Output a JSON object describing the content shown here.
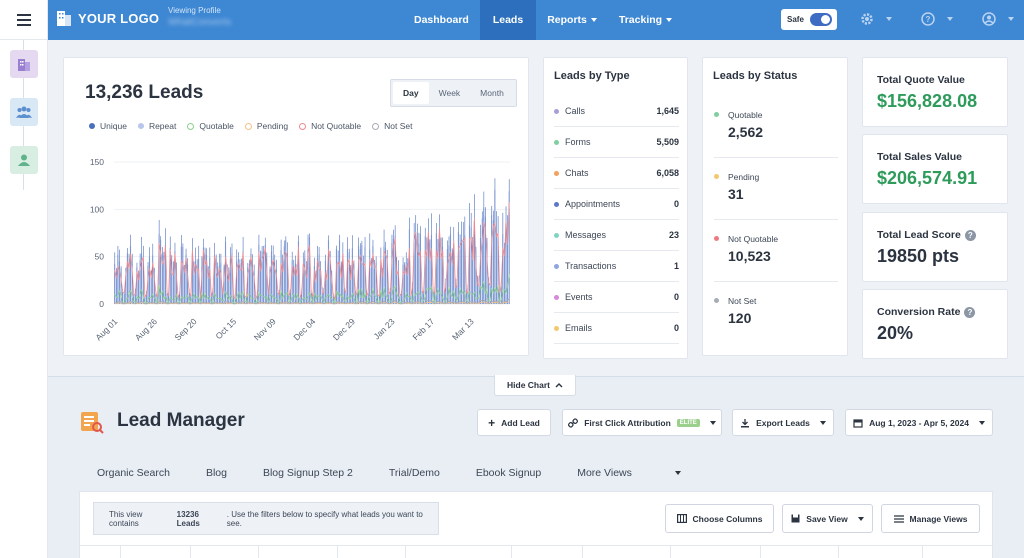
{
  "topbar": {
    "logo_text": "YOUR LOGO",
    "profile_label": "Viewing Profile",
    "profile_value": "WhatConverts",
    "nav": [
      {
        "label": "Dashboard"
      },
      {
        "label": "Leads"
      },
      {
        "label": "Reports"
      },
      {
        "label": "Tracking"
      }
    ],
    "safe_label": "Safe"
  },
  "chart": {
    "total": "13,236 Leads",
    "ranges": [
      "Day",
      "Week",
      "Month"
    ],
    "legend": [
      "Unique",
      "Repeat",
      "Quotable",
      "Pending",
      "Not Quotable",
      "Not Set"
    ],
    "colors": {
      "unique": "#4a6fbd",
      "repeat": "#b9c6ec",
      "quotable": "#8bd08f",
      "pending": "#f3c38a",
      "not_quotable": "#ee8a8f",
      "not_set": "#a7adb5"
    }
  },
  "chart_data": {
    "type": "bar",
    "title": "13,236 Leads",
    "xlabel": "",
    "ylabel": "",
    "ylim": [
      0,
      150
    ],
    "yticks": [
      0,
      50,
      100,
      150
    ],
    "xticks": [
      "Aug 01",
      "Aug 26",
      "Sep 20",
      "Oct 15",
      "Nov 09",
      "Dec 04",
      "Dec 29",
      "Jan 23",
      "Feb 17",
      "Mar 13"
    ],
    "series_names": [
      "Unique",
      "Repeat",
      "Quotable",
      "Pending",
      "Not Quotable",
      "Not Set"
    ]
  },
  "types": {
    "title": "Leads by Type",
    "items": [
      {
        "name": "Calls",
        "value": "1,645",
        "color": "#a99fd8"
      },
      {
        "name": "Forms",
        "value": "5,509",
        "color": "#7fcf9f"
      },
      {
        "name": "Chats",
        "value": "6,058",
        "color": "#f2a15e"
      },
      {
        "name": "Appointments",
        "value": "0",
        "color": "#5c79c9"
      },
      {
        "name": "Messages",
        "value": "23",
        "color": "#7fd4c2"
      },
      {
        "name": "Transactions",
        "value": "1",
        "color": "#8fa6e0"
      },
      {
        "name": "Events",
        "value": "0",
        "color": "#d68ad9"
      },
      {
        "name": "Emails",
        "value": "0",
        "color": "#f3c86d"
      }
    ]
  },
  "statuses": {
    "title": "Leads by Status",
    "items": [
      {
        "name": "Quotable",
        "value": "2,562",
        "color": "#7fcf9f"
      },
      {
        "name": "Pending",
        "value": "31",
        "color": "#f3c86d"
      },
      {
        "name": "Not Quotable",
        "value": "10,523",
        "color": "#ee7b82"
      },
      {
        "name": "Not Set",
        "value": "120",
        "color": "#a7adb5"
      }
    ]
  },
  "kpis": [
    {
      "title": "Total Quote Value",
      "value": "$156,828.08"
    },
    {
      "title": "Total Sales Value",
      "value": "$206,574.91"
    },
    {
      "title": "Total Lead Score",
      "value": "19850 pts"
    },
    {
      "title": "Conversion Rate",
      "value": "20%"
    }
  ],
  "lower": {
    "hide_chart": "Hide Chart",
    "title": "Lead Manager",
    "add_lead": "Add Lead",
    "attribution": "First Click Attribution",
    "elite": "ELITE",
    "export": "Export Leads",
    "date_range": "Aug 1, 2023 - Apr 5, 2024",
    "tabs": [
      "Organic Search",
      "Blog",
      "Blog Signup Step 2",
      "Trial/Demo",
      "Ebook Signup",
      "More Views"
    ],
    "notice_pre": "This view contains",
    "notice_count": "13236 Leads",
    "notice_post": ". Use the filters below to specify what leads you want to see.",
    "choose_columns": "Choose Columns",
    "save_view": "Save View",
    "manage_views": "Manage Views"
  }
}
